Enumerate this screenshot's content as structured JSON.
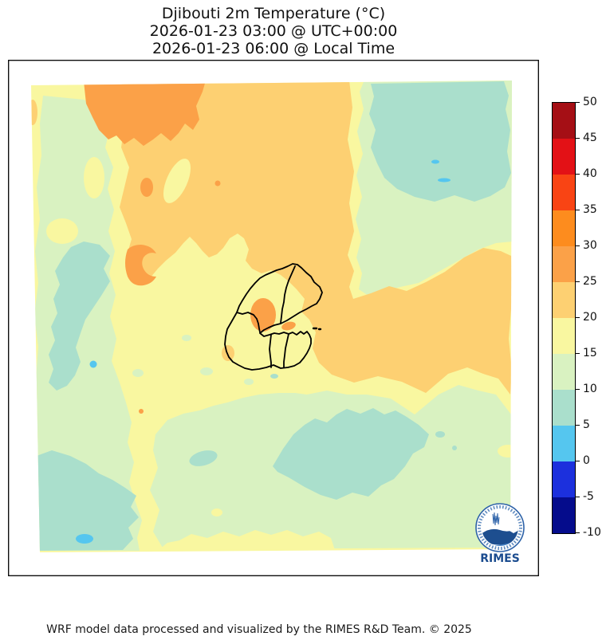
{
  "title": {
    "line1": "Djibouti 2m Temperature (°C)",
    "line2": "2026-01-23 03:00 @ UTC+00:00",
    "line3": "2026-01-23 06:00 @ Local Time"
  },
  "footer": {
    "credit": "WRF model data processed and visualized by the RIMES R&D Team. © 2025"
  },
  "colorbar": {
    "unit": "°C",
    "min": -10,
    "max": 50,
    "interval": 5,
    "tick_labels": [
      "50",
      "45",
      "40",
      "35",
      "30",
      "25",
      "20",
      "15",
      "10",
      "5",
      "0",
      "-5",
      "-10"
    ],
    "segment_colors_top_to_bottom": [
      "#a50f15",
      "#e31116",
      "#f94414",
      "#fd8c1e",
      "#fba148",
      "#fdd072",
      "#f9f7a0",
      "#d9f2c1",
      "#aadfcc",
      "#55c6ef",
      "#1c30dd",
      "#050c8c"
    ]
  },
  "map": {
    "country": "Djibouti",
    "field": "2m temperature filled contours",
    "visible_range_c": "0 to 30",
    "palette": {
      "t25_30_dark_orange": "#fba148",
      "t20_25_orange": "#fdd072",
      "t15_20_yellow": "#f9f7a0",
      "t10_15_pale_green": "#d9f2c1",
      "t5_10_teal": "#aadfcc",
      "t0_5_light_blue": "#55c6ef"
    },
    "features": [
      "warm 20-30C zone across north and east",
      "cool 5-10C highland zone northeast and southeast",
      "cool green band along western edge",
      "Djibouti admin boundaries drawn in black at center"
    ]
  },
  "logo": {
    "name": "RIMES",
    "caption": "RIMES"
  }
}
